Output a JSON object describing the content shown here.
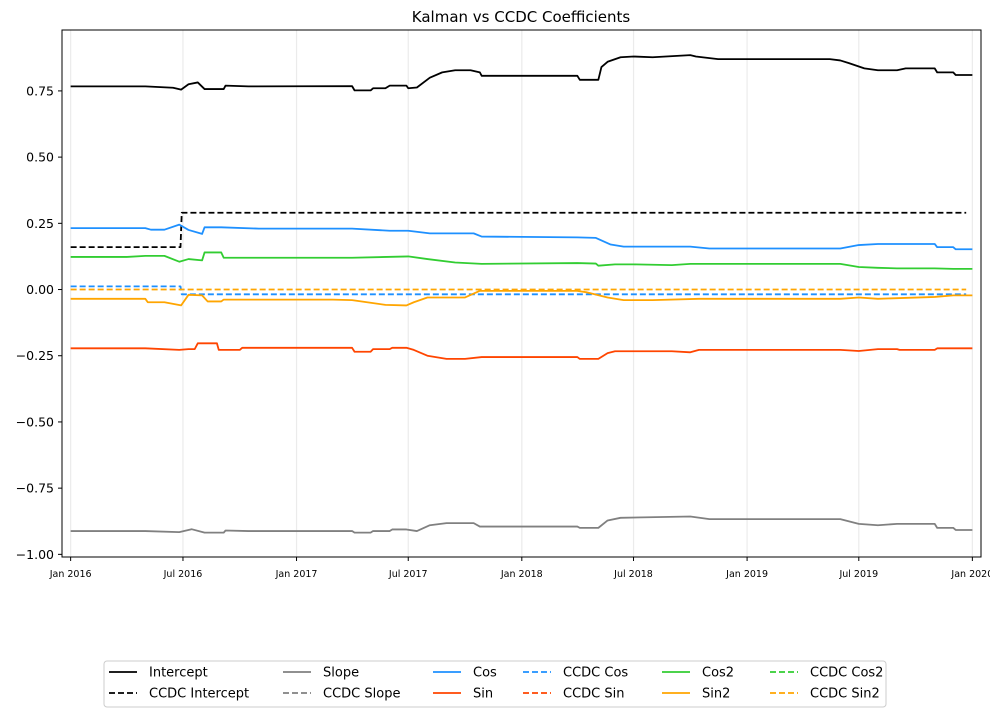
{
  "chart_data": {
    "type": "line",
    "title": "Kalman vs CCDC Coefficients",
    "xlabel": "",
    "ylabel": "",
    "x_range": [
      "2015-12-18",
      "2020-01-15"
    ],
    "ylim": [
      -1.01,
      0.98
    ],
    "x_ticks": [
      {
        "date": "2016-01-01",
        "label": "Jan 2016"
      },
      {
        "date": "2016-07-01",
        "label": "Jul 2016"
      },
      {
        "date": "2017-01-01",
        "label": "Jan 2017"
      },
      {
        "date": "2017-07-01",
        "label": "Jul 2017"
      },
      {
        "date": "2018-01-01",
        "label": "Jan 2018"
      },
      {
        "date": "2018-07-01",
        "label": "Jul 2018"
      },
      {
        "date": "2019-01-01",
        "label": "Jan 2019"
      },
      {
        "date": "2019-07-01",
        "label": "Jul 2019"
      },
      {
        "date": "2020-01-01",
        "label": "Jan 2020"
      }
    ],
    "y_ticks": [
      {
        "value": 0.75,
        "label": "0.75"
      },
      {
        "value": 0.5,
        "label": "0.50"
      },
      {
        "value": 0.25,
        "label": "0.25"
      },
      {
        "value": 0.0,
        "label": "0.00"
      },
      {
        "value": -0.25,
        "label": "−0.25"
      },
      {
        "value": -0.5,
        "label": "−0.50"
      },
      {
        "value": -0.75,
        "label": "−0.75"
      },
      {
        "value": -1.0,
        "label": "−1.00"
      }
    ],
    "grid": "x-axis only",
    "legend_position": "bottom-center",
    "series": [
      {
        "name": "Intercept",
        "color": "#000000",
        "dash": "solid",
        "points": [
          [
            "2016-01-01",
            0.767
          ],
          [
            "2016-05-01",
            0.767
          ],
          [
            "2016-06-15",
            0.762
          ],
          [
            "2016-06-28",
            0.755
          ],
          [
            "2016-07-10",
            0.775
          ],
          [
            "2016-07-25",
            0.782
          ],
          [
            "2016-08-05",
            0.757
          ],
          [
            "2016-09-05",
            0.757
          ],
          [
            "2016-09-08",
            0.77
          ],
          [
            "2016-10-15",
            0.767
          ],
          [
            "2017-04-01",
            0.768
          ],
          [
            "2017-04-05",
            0.752
          ],
          [
            "2017-05-01",
            0.752
          ],
          [
            "2017-05-05",
            0.76
          ],
          [
            "2017-05-25",
            0.76
          ],
          [
            "2017-06-01",
            0.77
          ],
          [
            "2017-06-28",
            0.77
          ],
          [
            "2017-07-01",
            0.76
          ],
          [
            "2017-07-15",
            0.763
          ],
          [
            "2017-08-05",
            0.8
          ],
          [
            "2017-08-25",
            0.82
          ],
          [
            "2017-09-15",
            0.828
          ],
          [
            "2017-10-10",
            0.828
          ],
          [
            "2017-10-25",
            0.82
          ],
          [
            "2017-10-28",
            0.807
          ],
          [
            "2018-04-01",
            0.807
          ],
          [
            "2018-04-05",
            0.792
          ],
          [
            "2018-05-05",
            0.792
          ],
          [
            "2018-05-10",
            0.84
          ],
          [
            "2018-05-20",
            0.86
          ],
          [
            "2018-06-10",
            0.877
          ],
          [
            "2018-07-01",
            0.88
          ],
          [
            "2018-08-01",
            0.877
          ],
          [
            "2018-10-01",
            0.885
          ],
          [
            "2018-10-10",
            0.88
          ],
          [
            "2018-11-15",
            0.87
          ],
          [
            "2019-05-15",
            0.87
          ],
          [
            "2019-06-01",
            0.865
          ],
          [
            "2019-06-15",
            0.855
          ],
          [
            "2019-07-10",
            0.835
          ],
          [
            "2019-08-01",
            0.828
          ],
          [
            "2019-09-01",
            0.828
          ],
          [
            "2019-09-15",
            0.835
          ],
          [
            "2019-11-01",
            0.835
          ],
          [
            "2019-11-05",
            0.82
          ],
          [
            "2019-12-01",
            0.82
          ],
          [
            "2019-12-05",
            0.81
          ],
          [
            "2020-01-01",
            0.81
          ]
        ]
      },
      {
        "name": "CCDC Intercept",
        "color": "#000000",
        "dash": "dashed",
        "points": [
          [
            "2016-01-01",
            0.16
          ],
          [
            "2016-06-27",
            0.16
          ],
          [
            "2016-06-29",
            0.29
          ],
          [
            "2019-12-22",
            0.29
          ]
        ]
      },
      {
        "name": "Slope",
        "color": "#808080",
        "dash": "solid",
        "points": [
          [
            "2016-01-01",
            -0.912
          ],
          [
            "2016-05-01",
            -0.912
          ],
          [
            "2016-06-25",
            -0.916
          ],
          [
            "2016-07-15",
            -0.905
          ],
          [
            "2016-08-05",
            -0.918
          ],
          [
            "2016-09-05",
            -0.918
          ],
          [
            "2016-09-08",
            -0.91
          ],
          [
            "2016-10-15",
            -0.912
          ],
          [
            "2017-04-01",
            -0.912
          ],
          [
            "2017-04-05",
            -0.918
          ],
          [
            "2017-05-01",
            -0.918
          ],
          [
            "2017-05-05",
            -0.912
          ],
          [
            "2017-06-01",
            -0.912
          ],
          [
            "2017-06-05",
            -0.906
          ],
          [
            "2017-06-28",
            -0.906
          ],
          [
            "2017-07-15",
            -0.912
          ],
          [
            "2017-08-05",
            -0.89
          ],
          [
            "2017-09-01",
            -0.882
          ],
          [
            "2017-10-15",
            -0.882
          ],
          [
            "2017-10-25",
            -0.895
          ],
          [
            "2018-04-01",
            -0.895
          ],
          [
            "2018-04-05",
            -0.9
          ],
          [
            "2018-05-05",
            -0.9
          ],
          [
            "2018-05-20",
            -0.872
          ],
          [
            "2018-06-10",
            -0.862
          ],
          [
            "2018-10-01",
            -0.857
          ],
          [
            "2018-11-01",
            -0.867
          ],
          [
            "2019-06-01",
            -0.867
          ],
          [
            "2019-07-01",
            -0.885
          ],
          [
            "2019-08-01",
            -0.89
          ],
          [
            "2019-09-01",
            -0.885
          ],
          [
            "2019-11-01",
            -0.885
          ],
          [
            "2019-11-05",
            -0.9
          ],
          [
            "2019-12-01",
            -0.9
          ],
          [
            "2019-12-05",
            -0.908
          ],
          [
            "2020-01-01",
            -0.908
          ]
        ]
      },
      {
        "name": "CCDC Slope",
        "color": "#808080",
        "dash": "dashed",
        "points": []
      },
      {
        "name": "Cos",
        "color": "#1e90ff",
        "dash": "solid",
        "points": [
          [
            "2016-01-01",
            0.232
          ],
          [
            "2016-05-01",
            0.232
          ],
          [
            "2016-05-10",
            0.226
          ],
          [
            "2016-06-01",
            0.226
          ],
          [
            "2016-06-25",
            0.245
          ],
          [
            "2016-07-10",
            0.225
          ],
          [
            "2016-08-01",
            0.21
          ],
          [
            "2016-08-05",
            0.235
          ],
          [
            "2016-09-01",
            0.235
          ],
          [
            "2016-11-01",
            0.23
          ],
          [
            "2017-04-01",
            0.23
          ],
          [
            "2017-06-01",
            0.222
          ],
          [
            "2017-07-01",
            0.222
          ],
          [
            "2017-08-05",
            0.212
          ],
          [
            "2017-10-15",
            0.212
          ],
          [
            "2017-10-28",
            0.2
          ],
          [
            "2018-04-01",
            0.197
          ],
          [
            "2018-05-01",
            0.195
          ],
          [
            "2018-05-25",
            0.17
          ],
          [
            "2018-06-15",
            0.162
          ],
          [
            "2018-10-01",
            0.162
          ],
          [
            "2018-11-01",
            0.155
          ],
          [
            "2019-06-01",
            0.155
          ],
          [
            "2019-07-01",
            0.168
          ],
          [
            "2019-08-01",
            0.172
          ],
          [
            "2019-11-01",
            0.172
          ],
          [
            "2019-11-05",
            0.16
          ],
          [
            "2019-12-01",
            0.16
          ],
          [
            "2019-12-05",
            0.152
          ],
          [
            "2020-01-01",
            0.152
          ]
        ]
      },
      {
        "name": "CCDC Cos",
        "color": "#1e90ff",
        "dash": "dashed",
        "points": [
          [
            "2016-01-01",
            0.012
          ],
          [
            "2016-06-27",
            0.012
          ],
          [
            "2016-06-29",
            -0.018
          ],
          [
            "2019-12-22",
            -0.018
          ]
        ]
      },
      {
        "name": "Sin",
        "color": "#ff4500",
        "dash": "solid",
        "points": [
          [
            "2016-01-01",
            -0.222
          ],
          [
            "2016-05-01",
            -0.222
          ],
          [
            "2016-06-25",
            -0.228
          ],
          [
            "2016-07-10",
            -0.225
          ],
          [
            "2016-07-20",
            -0.225
          ],
          [
            "2016-07-25",
            -0.203
          ],
          [
            "2016-08-25",
            -0.203
          ],
          [
            "2016-08-28",
            -0.228
          ],
          [
            "2016-10-01",
            -0.228
          ],
          [
            "2016-10-05",
            -0.22
          ],
          [
            "2017-04-01",
            -0.22
          ],
          [
            "2017-04-05",
            -0.235
          ],
          [
            "2017-05-01",
            -0.235
          ],
          [
            "2017-05-05",
            -0.225
          ],
          [
            "2017-06-01",
            -0.225
          ],
          [
            "2017-06-05",
            -0.22
          ],
          [
            "2017-06-28",
            -0.22
          ],
          [
            "2017-07-10",
            -0.228
          ],
          [
            "2017-08-01",
            -0.25
          ],
          [
            "2017-09-01",
            -0.262
          ],
          [
            "2017-10-01",
            -0.262
          ],
          [
            "2017-10-28",
            -0.255
          ],
          [
            "2018-04-01",
            -0.255
          ],
          [
            "2018-04-05",
            -0.262
          ],
          [
            "2018-05-05",
            -0.262
          ],
          [
            "2018-05-20",
            -0.24
          ],
          [
            "2018-06-01",
            -0.233
          ],
          [
            "2018-09-01",
            -0.233
          ],
          [
            "2018-10-01",
            -0.237
          ],
          [
            "2018-10-15",
            -0.228
          ],
          [
            "2019-06-01",
            -0.228
          ],
          [
            "2019-07-01",
            -0.232
          ],
          [
            "2019-08-01",
            -0.225
          ],
          [
            "2019-09-01",
            -0.225
          ],
          [
            "2019-09-05",
            -0.228
          ],
          [
            "2019-11-01",
            -0.228
          ],
          [
            "2019-11-05",
            -0.222
          ],
          [
            "2020-01-01",
            -0.222
          ]
        ]
      },
      {
        "name": "CCDC Sin",
        "color": "#ff4500",
        "dash": "dashed",
        "points": []
      },
      {
        "name": "Cos2",
        "color": "#32cd32",
        "dash": "solid",
        "points": [
          [
            "2016-01-01",
            0.123
          ],
          [
            "2016-04-01",
            0.123
          ],
          [
            "2016-05-01",
            0.127
          ],
          [
            "2016-06-01",
            0.127
          ],
          [
            "2016-06-25",
            0.105
          ],
          [
            "2016-07-10",
            0.115
          ],
          [
            "2016-08-01",
            0.11
          ],
          [
            "2016-08-05",
            0.14
          ],
          [
            "2016-09-01",
            0.14
          ],
          [
            "2016-09-05",
            0.12
          ],
          [
            "2017-04-01",
            0.12
          ],
          [
            "2017-07-01",
            0.125
          ],
          [
            "2017-08-01",
            0.115
          ],
          [
            "2017-09-15",
            0.102
          ],
          [
            "2017-10-28",
            0.097
          ],
          [
            "2018-04-01",
            0.1
          ],
          [
            "2018-05-01",
            0.098
          ],
          [
            "2018-05-05",
            0.09
          ],
          [
            "2018-06-01",
            0.095
          ],
          [
            "2018-07-01",
            0.095
          ],
          [
            "2018-09-01",
            0.092
          ],
          [
            "2018-10-01",
            0.097
          ],
          [
            "2019-06-01",
            0.097
          ],
          [
            "2019-07-01",
            0.085
          ],
          [
            "2019-08-01",
            0.082
          ],
          [
            "2019-09-01",
            0.08
          ],
          [
            "2019-11-01",
            0.08
          ],
          [
            "2019-12-01",
            0.078
          ],
          [
            "2020-01-01",
            0.078
          ]
        ]
      },
      {
        "name": "CCDC Cos2",
        "color": "#32cd32",
        "dash": "dashed",
        "points": []
      },
      {
        "name": "Sin2",
        "color": "#ffa500",
        "dash": "solid",
        "points": [
          [
            "2016-01-01",
            -0.035
          ],
          [
            "2016-05-01",
            -0.035
          ],
          [
            "2016-05-05",
            -0.048
          ],
          [
            "2016-06-01",
            -0.048
          ],
          [
            "2016-06-28",
            -0.06
          ],
          [
            "2016-07-10",
            -0.02
          ],
          [
            "2016-08-01",
            -0.022
          ],
          [
            "2016-08-10",
            -0.045
          ],
          [
            "2016-09-01",
            -0.045
          ],
          [
            "2016-09-05",
            -0.038
          ],
          [
            "2017-03-01",
            -0.038
          ],
          [
            "2017-04-01",
            -0.04
          ],
          [
            "2017-05-01",
            -0.05
          ],
          [
            "2017-05-25",
            -0.058
          ],
          [
            "2017-06-28",
            -0.06
          ],
          [
            "2017-07-10",
            -0.048
          ],
          [
            "2017-08-01",
            -0.03
          ],
          [
            "2017-10-01",
            -0.03
          ],
          [
            "2017-10-25",
            -0.005
          ],
          [
            "2018-04-01",
            -0.005
          ],
          [
            "2018-04-15",
            -0.01
          ],
          [
            "2018-05-20",
            -0.03
          ],
          [
            "2018-06-15",
            -0.04
          ],
          [
            "2018-08-01",
            -0.04
          ],
          [
            "2018-10-15",
            -0.035
          ],
          [
            "2019-06-01",
            -0.035
          ],
          [
            "2019-07-01",
            -0.03
          ],
          [
            "2019-08-01",
            -0.035
          ],
          [
            "2019-11-01",
            -0.028
          ],
          [
            "2019-12-01",
            -0.022
          ],
          [
            "2020-01-01",
            -0.022
          ]
        ]
      },
      {
        "name": "CCDC Sin2",
        "color": "#ffa500",
        "dash": "dashed",
        "points": [
          [
            "2016-01-01",
            0.0
          ],
          [
            "2019-12-22",
            0.0
          ]
        ]
      }
    ],
    "legend_columns": [
      [
        "Intercept",
        "CCDC Intercept"
      ],
      [
        "Slope",
        "CCDC Slope"
      ],
      [
        "Cos",
        "Sin"
      ],
      [
        "CCDC Cos",
        "CCDC Sin"
      ],
      [
        "Cos2",
        "Sin2"
      ],
      [
        "CCDC Cos2",
        "CCDC Sin2"
      ]
    ]
  }
}
